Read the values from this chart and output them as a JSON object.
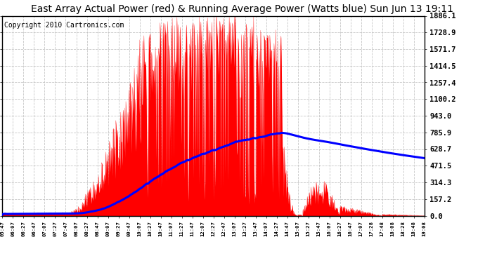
{
  "title": "East Array Actual Power (red) & Running Average Power (Watts blue) Sun Jun 13 19:11",
  "copyright": "Copyright 2010 Cartronics.com",
  "yticks": [
    0.0,
    157.2,
    314.3,
    471.5,
    628.7,
    785.9,
    943.0,
    1100.2,
    1257.4,
    1414.5,
    1571.7,
    1728.9,
    1886.1
  ],
  "ymax": 1886.1,
  "ymin": 0.0,
  "x_labels": [
    "05:47",
    "06:07",
    "06:27",
    "06:47",
    "07:07",
    "07:27",
    "07:47",
    "08:07",
    "08:27",
    "08:47",
    "09:07",
    "09:27",
    "09:47",
    "10:07",
    "10:27",
    "10:47",
    "11:07",
    "11:27",
    "11:47",
    "12:07",
    "12:27",
    "12:47",
    "13:07",
    "13:27",
    "13:47",
    "14:07",
    "14:27",
    "14:47",
    "15:07",
    "15:27",
    "15:47",
    "16:07",
    "16:27",
    "16:47",
    "17:07",
    "17:28",
    "17:48",
    "18:08",
    "18:28",
    "18:48",
    "19:08"
  ],
  "fill_color": "#FF0000",
  "line_color": "#0000FF",
  "bg_color": "#FFFFFF",
  "grid_color": "#AAAAAA",
  "title_fontsize": 10,
  "copyright_fontsize": 7
}
